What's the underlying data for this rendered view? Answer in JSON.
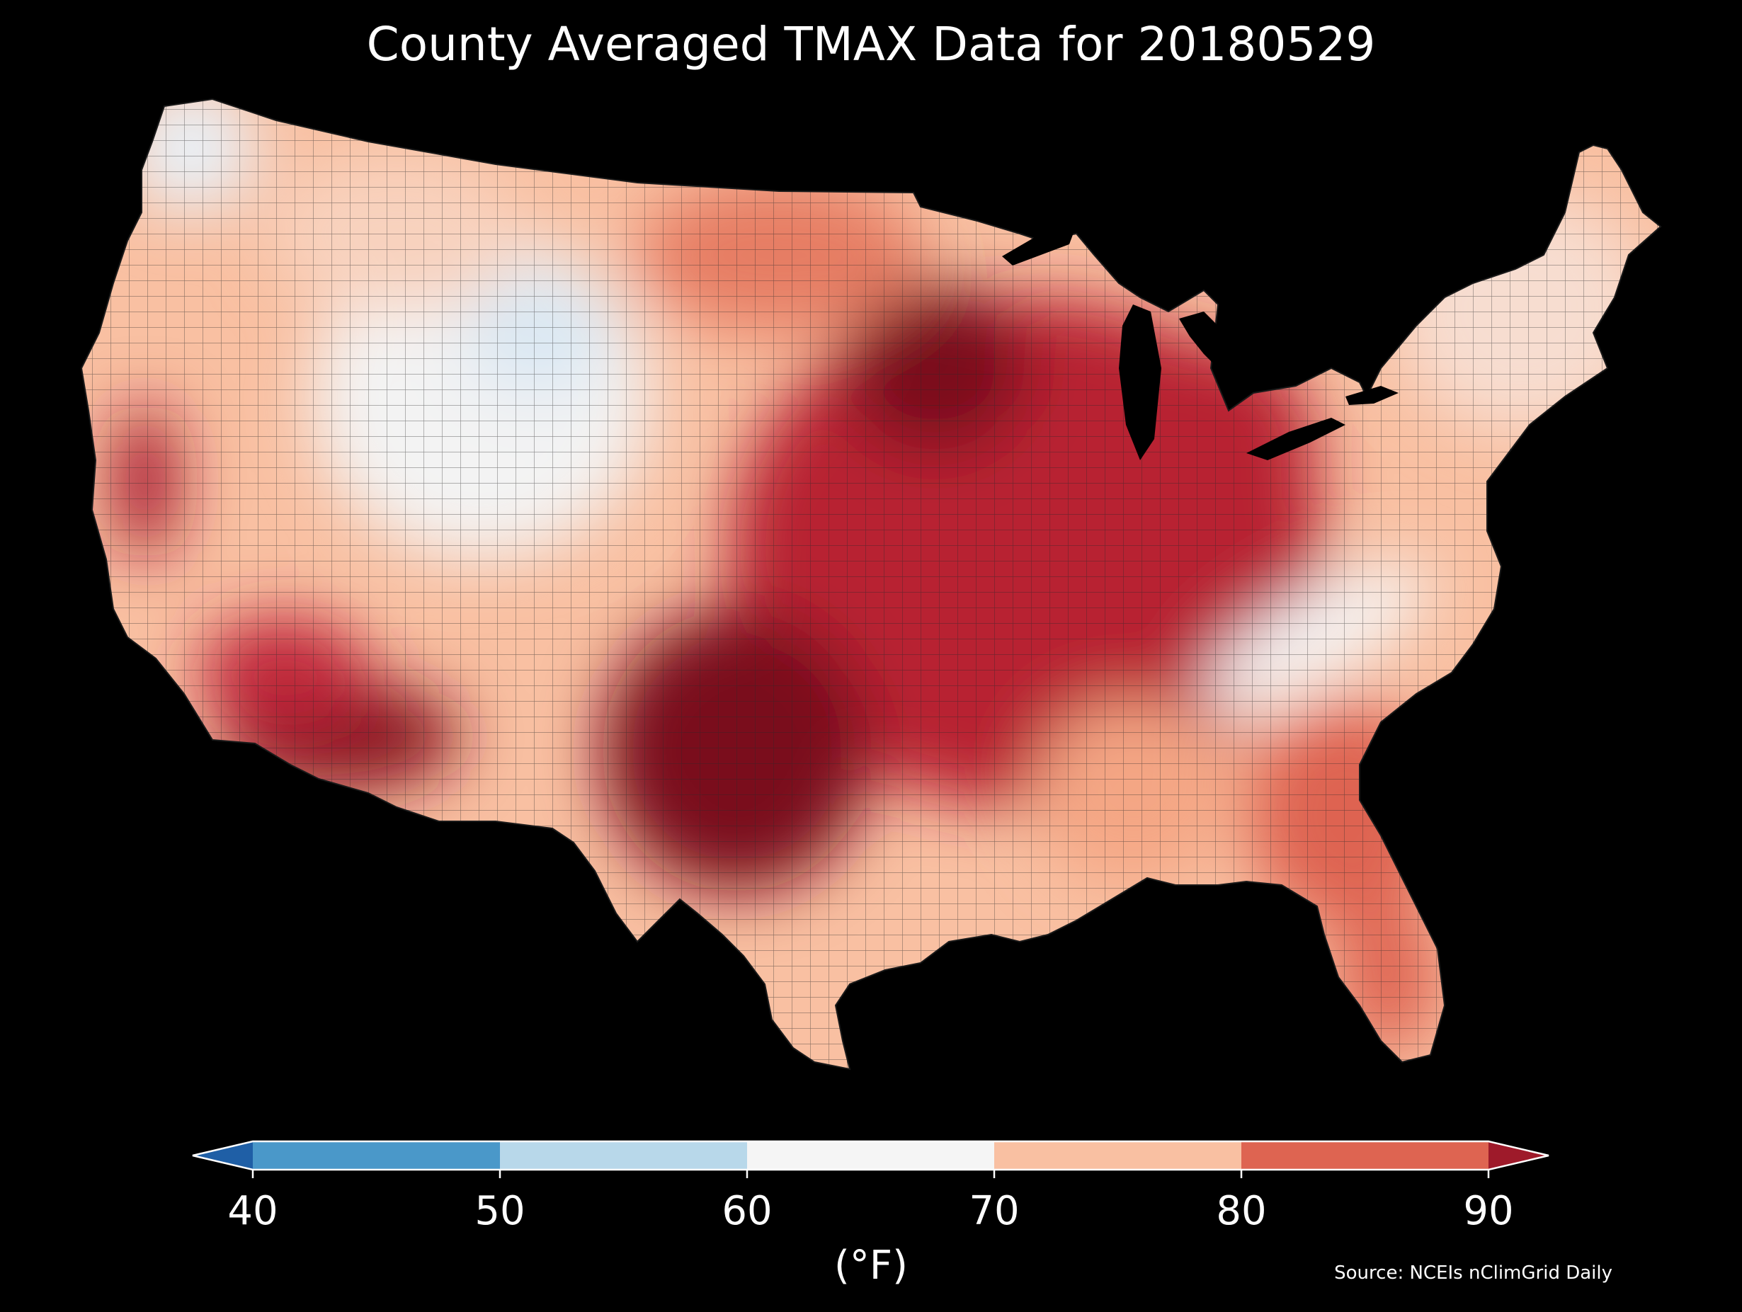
{
  "title": "County Averaged TMAX Data for 20180529",
  "map": {
    "region": "contiguous-united-states",
    "description_colors": {
      "water": "#000000",
      "county_border": "#2a2a2a"
    }
  },
  "colorbar": {
    "ticks": [
      "40",
      "50",
      "60",
      "70",
      "80",
      "90"
    ],
    "tick_values": [
      40,
      50,
      60,
      70,
      80,
      90
    ],
    "bins": [
      {
        "min": null,
        "max": 40,
        "color": "#1f5fa6"
      },
      {
        "min": 40,
        "max": 50,
        "color": "#4a98c9"
      },
      {
        "min": 50,
        "max": 60,
        "color": "#b8d8ea"
      },
      {
        "min": 60,
        "max": 70,
        "color": "#f5f5f5"
      },
      {
        "min": 70,
        "max": 80,
        "color": "#f9c0a2"
      },
      {
        "min": 80,
        "max": 90,
        "color": "#de6451"
      },
      {
        "min": 90,
        "max": null,
        "color": "#9e1a2a"
      }
    ],
    "units": "(°F)"
  },
  "source": "Source: NCEIs nClimGrid Daily"
}
